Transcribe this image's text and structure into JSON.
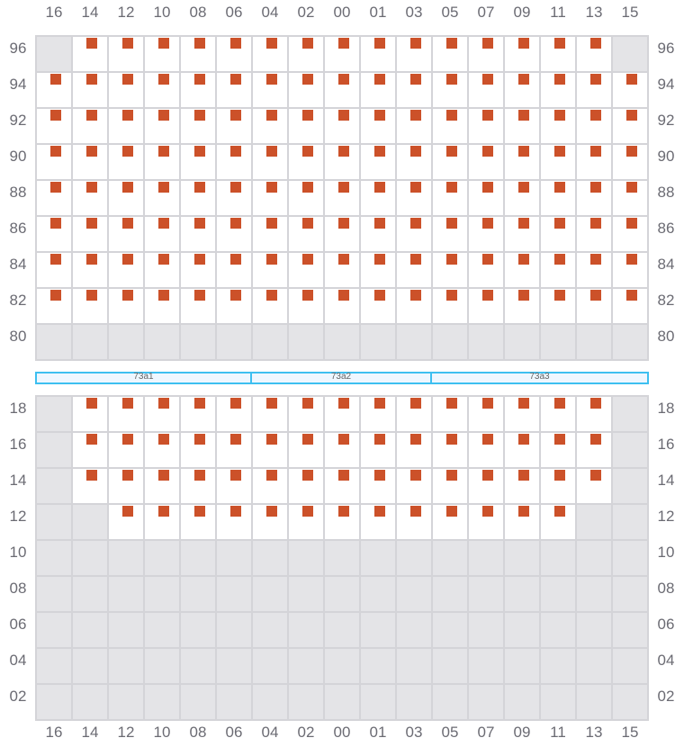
{
  "columns": [
    "16",
    "14",
    "12",
    "10",
    "08",
    "06",
    "04",
    "02",
    "00",
    "01",
    "03",
    "05",
    "07",
    "09",
    "11",
    "13",
    "15"
  ],
  "colors": {
    "occupied": "#cc5129",
    "unavailable": "#e4e4e7",
    "available": "#ffffff",
    "section_border": "#3dbff0"
  },
  "legend_codes": {
    "x": "occupied",
    "w": "available",
    "g": "unavailable"
  },
  "top_block": {
    "rows": [
      {
        "label": "96",
        "cells": "gxxxxxxxxxxxxxxxg"
      },
      {
        "label": "94",
        "cells": "xxxxxxxxxxxxxxxxx"
      },
      {
        "label": "92",
        "cells": "xxxxxxxxxxxxxxxxx"
      },
      {
        "label": "90",
        "cells": "xxxxxxxxxxxxxxxxx"
      },
      {
        "label": "88",
        "cells": "xxxxxxxxxxxxxxxxx"
      },
      {
        "label": "86",
        "cells": "xxxxxxxxxxxxxxxxx"
      },
      {
        "label": "84",
        "cells": "xxxxxxxxxxxxxxxxx"
      },
      {
        "label": "82",
        "cells": "xxxxxxxxxxxxxxxxx"
      },
      {
        "label": "80",
        "cells": "ggggggggggggggggg"
      }
    ]
  },
  "sections": [
    {
      "label": "73a1"
    },
    {
      "label": "73a2"
    },
    {
      "label": "73a3"
    }
  ],
  "bottom_block": {
    "rows": [
      {
        "label": "18",
        "cells": "gxxxxxxxxxxxxxxxg"
      },
      {
        "label": "16",
        "cells": "gxxxxxxxxxxxxxxxg"
      },
      {
        "label": "14",
        "cells": "gxxxxxxxxxxxxxxxg"
      },
      {
        "label": "12",
        "cells": "ggxxxxxxxxxxxxxgg"
      },
      {
        "label": "10",
        "cells": "ggggggggggggggggg"
      },
      {
        "label": "08",
        "cells": "ggggggggggggggggg"
      },
      {
        "label": "06",
        "cells": "ggggggggggggggggg"
      },
      {
        "label": "04",
        "cells": "ggggggggggggggggg"
      },
      {
        "label": "02",
        "cells": "ggggggggggggggggg"
      }
    ]
  }
}
